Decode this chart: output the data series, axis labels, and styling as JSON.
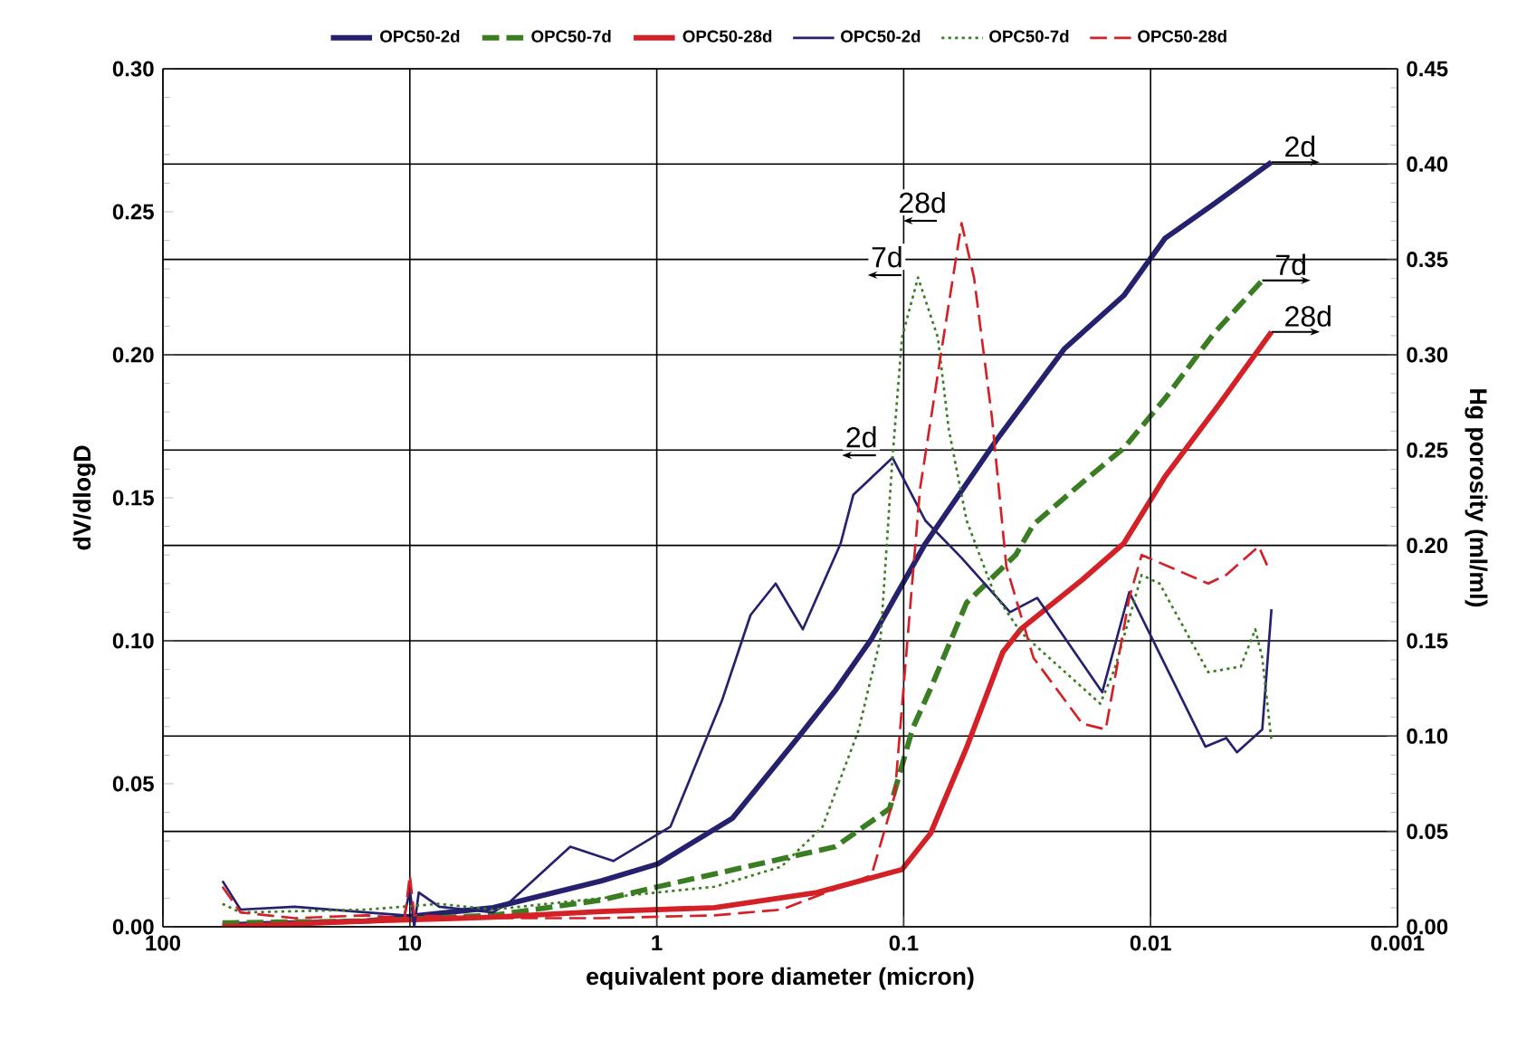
{
  "chart_data": {
    "type": "line",
    "xlabel": "equivalent pore diameter (micron)",
    "ylabel": "dV/dlogD",
    "y2label": "Hg porosity (ml/ml)",
    "log": "x",
    "grid": true,
    "legend": "top",
    "marker": "none",
    "xlim": [
      100,
      0.001
    ],
    "xticks": [
      100,
      10,
      1,
      0.1,
      0.01,
      0.001
    ],
    "ylim": [
      0,
      0.3
    ],
    "yticks": [
      {
        "value": 0,
        "label": "0.00"
      },
      {
        "value": 0.05,
        "label": "0.05"
      },
      {
        "value": 0.1,
        "label": "0.10"
      },
      {
        "value": 0.15,
        "label": "0.15"
      },
      {
        "value": 0.2,
        "label": "0.20"
      },
      {
        "value": 0.25,
        "label": "0.25"
      },
      {
        "value": 0.3,
        "label": "0.30"
      }
    ],
    "y2lim": [
      0,
      0.45
    ],
    "y2ticks": [
      {
        "value": 0,
        "label": "0.00"
      },
      {
        "value": 0.05,
        "label": "0.05"
      },
      {
        "value": 0.1,
        "label": "0.10"
      },
      {
        "value": 0.15,
        "label": "0.15"
      },
      {
        "value": 0.2,
        "label": "0.20"
      },
      {
        "value": 0.25,
        "label": "0.25"
      },
      {
        "value": 0.3,
        "label": "0.30"
      },
      {
        "value": 0.35,
        "label": "0.35"
      },
      {
        "value": 0.4,
        "label": "0.40"
      },
      {
        "value": 0.45,
        "label": "0.45"
      }
    ],
    "series": [
      {
        "name": "OPC50-2d",
        "color": "#25216e",
        "axis": "y2",
        "line_style": "solid",
        "x": [
          57.4,
          15,
          4.6,
          1.68,
          0.99,
          0.493,
          0.265,
          0.189,
          0.135,
          0.0817,
          0.0417,
          0.0224,
          0.01285,
          0.00875,
          0.00556,
          0.00324
        ],
        "values": [
          0.001,
          0.003,
          0.01,
          0.024,
          0.033,
          0.057,
          0.1,
          0.124,
          0.151,
          0.201,
          0.256,
          0.303,
          0.331,
          0.361,
          0.379,
          0.401
        ]
      },
      {
        "name": "OPC50-7d",
        "color": "#3a7d22",
        "axis": "y2",
        "line_style": "dashed",
        "x": [
          57.4,
          15,
          4.6,
          1.68,
          0.99,
          0.189,
          0.114,
          0.092,
          0.0778,
          0.0556,
          0.0352,
          0.0298,
          0.0189,
          0.01285,
          0.00875,
          0.00556,
          0.00353
        ],
        "values": [
          0.002,
          0.003,
          0.006,
          0.014,
          0.021,
          0.042,
          0.062,
          0.104,
          0.125,
          0.17,
          0.195,
          0.211,
          0.233,
          0.251,
          0.277,
          0.311,
          0.339
        ]
      },
      {
        "name": "OPC50-28d",
        "color": "#d42027",
        "axis": "y2",
        "line_style": "solid",
        "x": [
          57.4,
          15,
          4.6,
          1.68,
          0.583,
          0.224,
          0.1016,
          0.0778,
          0.0556,
          0.0397,
          0.0336,
          0.0189,
          0.01285,
          0.00875,
          0.00528,
          0.00324
        ],
        "values": [
          0.0,
          0.003,
          0.005,
          0.008,
          0.01,
          0.018,
          0.03,
          0.049,
          0.094,
          0.144,
          0.156,
          0.182,
          0.201,
          0.236,
          0.274,
          0.312
        ]
      },
      {
        "name": "OPC50-2d",
        "color": "#25216e",
        "line_style": "solid",
        "x": [
          57.4,
          48.5,
          29.3,
          15,
          10.5,
          10,
          9.6,
          9.2,
          7.6,
          4.6,
          3.9,
          2.24,
          1.5,
          0.88,
          0.545,
          0.417,
          0.33,
          0.256,
          0.18,
          0.16,
          0.111,
          0.0817,
          0.0583,
          0.0371,
          0.0288,
          0.0157,
          0.0122,
          0.006,
          0.00494,
          0.00447,
          0.00353,
          0.00324
        ],
        "values": [
          0.016,
          0.006,
          0.007,
          0.005,
          0.004,
          0.013,
          0.0,
          0.012,
          0.007,
          0.005,
          0.009,
          0.028,
          0.023,
          0.035,
          0.079,
          0.109,
          0.12,
          0.104,
          0.134,
          0.151,
          0.164,
          0.142,
          0.129,
          0.11,
          0.115,
          0.082,
          0.117,
          0.063,
          0.066,
          0.061,
          0.069,
          0.111
        ]
      },
      {
        "name": "OPC50-7d",
        "color": "#3a7d22",
        "line_style": "dotted",
        "x": [
          57.4,
          48.5,
          15,
          7.64,
          4.61,
          1.68,
          0.583,
          0.313,
          0.213,
          0.152,
          0.124,
          0.111,
          0.1016,
          0.0875,
          0.0727,
          0.0657,
          0.0556,
          0.0432,
          0.0336,
          0.016,
          0.014,
          0.01087,
          0.0092,
          0.00584,
          0.00431,
          0.00377,
          0.00353,
          0.00324
        ],
        "values": [
          0.008,
          0.005,
          0.006,
          0.008,
          0.006,
          0.01,
          0.014,
          0.021,
          0.035,
          0.069,
          0.101,
          0.164,
          0.206,
          0.227,
          0.206,
          0.174,
          0.142,
          0.117,
          0.103,
          0.078,
          0.09,
          0.123,
          0.12,
          0.089,
          0.091,
          0.104,
          0.094,
          0.065
        ]
      },
      {
        "name": "OPC50-28d",
        "color": "#d42027",
        "line_style": "dashed",
        "x": [
          57.4,
          48.5,
          29.3,
          15,
          10.5,
          10,
          9.6,
          4.6,
          1.68,
          0.583,
          0.313,
          0.135,
          0.1087,
          0.0966,
          0.0859,
          0.069,
          0.0583,
          0.0519,
          0.0439,
          0.0384,
          0.0298,
          0.0189,
          0.0152,
          0.0122,
          0.01087,
          0.00584,
          0.00494,
          0.00365,
          0.00336
        ],
        "values": [
          0.014,
          0.005,
          0.003,
          0.004,
          0.003,
          0.018,
          0.004,
          0.003,
          0.003,
          0.004,
          0.006,
          0.018,
          0.046,
          0.1,
          0.153,
          0.206,
          0.246,
          0.227,
          0.178,
          0.126,
          0.094,
          0.071,
          0.069,
          0.115,
          0.13,
          0.12,
          0.123,
          0.133,
          0.126
        ]
      }
    ],
    "annotations": [
      {
        "text": "2d",
        "x": 0.111,
        "y": 0.164
      },
      {
        "text": "7d",
        "x": 0.0875,
        "y": 0.227
      },
      {
        "text": "28d",
        "x": 0.0583,
        "y": 0.246
      },
      "2d",
      "7d",
      "28d"
    ]
  }
}
